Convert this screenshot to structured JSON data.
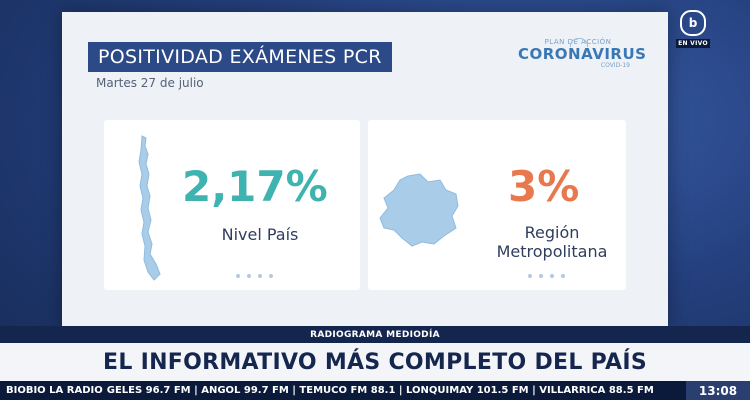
{
  "slide": {
    "title": "POSITIVIDAD EXÁMENES PCR",
    "date": "Martes 27 de julio",
    "logo": {
      "plan": "PLAN DE ACCIÓN",
      "word": "CORONAVIRUS",
      "covid": "COVID-19"
    },
    "cards": [
      {
        "value": "2,17%",
        "label": "Nivel País",
        "color": "#3fb3b0"
      },
      {
        "value": "3%",
        "label_line1": "Región",
        "label_line2": "Metropolitana",
        "color": "#e8784d"
      }
    ]
  },
  "channel": {
    "mark": "b",
    "live": "EN VIVO"
  },
  "lower_third": {
    "program": "RADIOGRAMA MEDIODÍA",
    "headline": "EL INFORMATIVO MÁS COMPLETO DEL PAÍS",
    "radio": "BIOBIO LA RADIO",
    "ticker": "GELES 96.7 FM | ANGOL 99.7 FM | TEMUCO FM 88.1 | LONQUIMAY 101.5 FM | VILLARRICA 88.5 FM",
    "time": "13:08"
  },
  "colors": {
    "accent_teal": "#3fb3b0",
    "accent_orange": "#e8784d",
    "navy": "#2c4a87",
    "map_blue": "#a9cde9"
  }
}
